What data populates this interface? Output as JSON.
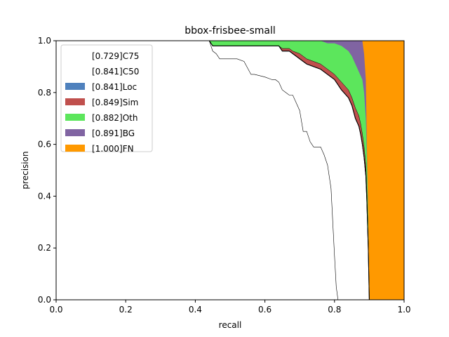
{
  "chart_data": {
    "type": "area",
    "title": "bbox-frisbee-small",
    "xlabel": "recall",
    "ylabel": "precision",
    "xlim": [
      0,
      1
    ],
    "ylim": [
      0,
      1
    ],
    "xticks": [
      "0.0",
      "0.2",
      "0.4",
      "0.6",
      "0.8",
      "1.0"
    ],
    "yticks": [
      "0.0",
      "0.2",
      "0.4",
      "0.6",
      "0.8",
      "1.0"
    ],
    "legend_position": "top-left",
    "legend": [
      {
        "label": "[0.729]C75",
        "color": "#ffffff"
      },
      {
        "label": "[0.841]C50",
        "color": "#ffffff"
      },
      {
        "label": "[0.841]Loc",
        "color": "#4f81bd"
      },
      {
        "label": "[0.849]Sim",
        "color": "#c0504d"
      },
      {
        "label": "[0.882]Oth",
        "color": "#5ce65c"
      },
      {
        "label": "[0.891]BG",
        "color": "#8064a2"
      },
      {
        "label": "[1.000]FN",
        "color": "#ff9900"
      }
    ],
    "series": [
      {
        "name": "[0.729]C75",
        "x": [
          0,
          0.44,
          0.45,
          0.46,
          0.47,
          0.48,
          0.5,
          0.52,
          0.54,
          0.56,
          0.57,
          0.6,
          0.62,
          0.63,
          0.64,
          0.65,
          0.66,
          0.67,
          0.68,
          0.69,
          0.7,
          0.71,
          0.72,
          0.73,
          0.74,
          0.75,
          0.76,
          0.77,
          0.78,
          0.79,
          0.8,
          0.805,
          0.81
        ],
        "y": [
          1.0,
          1.0,
          0.96,
          0.95,
          0.93,
          0.93,
          0.93,
          0.93,
          0.92,
          0.87,
          0.87,
          0.86,
          0.85,
          0.85,
          0.84,
          0.81,
          0.8,
          0.79,
          0.79,
          0.76,
          0.73,
          0.65,
          0.65,
          0.61,
          0.59,
          0.59,
          0.59,
          0.56,
          0.52,
          0.43,
          0.17,
          0.05,
          0.0
        ]
      },
      {
        "name": "[0.841]C50",
        "x": [
          0,
          0.44,
          0.45,
          0.6,
          0.64,
          0.65,
          0.67,
          0.68,
          0.7,
          0.72,
          0.74,
          0.76,
          0.78,
          0.8,
          0.82,
          0.84,
          0.85,
          0.86,
          0.87,
          0.875,
          0.88,
          0.885,
          0.89,
          0.893,
          0.897,
          0.9
        ],
        "y": [
          1.0,
          1.0,
          0.98,
          0.98,
          0.98,
          0.96,
          0.96,
          0.95,
          0.93,
          0.91,
          0.9,
          0.89,
          0.87,
          0.85,
          0.81,
          0.78,
          0.75,
          0.7,
          0.67,
          0.64,
          0.6,
          0.55,
          0.48,
          0.38,
          0.2,
          0.0
        ]
      },
      {
        "name": "[0.841]Loc",
        "x": [
          0,
          0.44,
          0.45,
          0.6,
          0.64,
          0.65,
          0.67,
          0.68,
          0.7,
          0.72,
          0.74,
          0.76,
          0.78,
          0.8,
          0.82,
          0.84,
          0.85,
          0.86,
          0.87,
          0.875,
          0.88,
          0.885,
          0.89,
          0.893,
          0.897,
          0.9
        ],
        "y": [
          1.0,
          1.0,
          0.98,
          0.98,
          0.98,
          0.96,
          0.96,
          0.95,
          0.93,
          0.91,
          0.9,
          0.89,
          0.87,
          0.85,
          0.81,
          0.78,
          0.75,
          0.7,
          0.67,
          0.64,
          0.6,
          0.55,
          0.48,
          0.38,
          0.2,
          0.0
        ]
      },
      {
        "name": "[0.849]Sim",
        "x": [
          0,
          0.44,
          0.45,
          0.6,
          0.64,
          0.65,
          0.67,
          0.68,
          0.7,
          0.72,
          0.74,
          0.76,
          0.78,
          0.8,
          0.82,
          0.84,
          0.85,
          0.86,
          0.87,
          0.875,
          0.88,
          0.885,
          0.89,
          0.893,
          0.897,
          0.9
        ],
        "y": [
          1.0,
          1.0,
          0.98,
          0.98,
          0.98,
          0.97,
          0.97,
          0.96,
          0.95,
          0.93,
          0.92,
          0.91,
          0.89,
          0.87,
          0.84,
          0.81,
          0.78,
          0.74,
          0.71,
          0.68,
          0.64,
          0.59,
          0.52,
          0.42,
          0.22,
          0.0
        ]
      },
      {
        "name": "[0.882]Oth",
        "x": [
          0,
          0.44,
          0.45,
          0.6,
          0.64,
          0.68,
          0.7,
          0.74,
          0.76,
          0.78,
          0.8,
          0.82,
          0.84,
          0.85,
          0.86,
          0.87,
          0.88,
          0.885,
          0.89,
          0.893,
          0.897,
          0.9
        ],
        "y": [
          1.0,
          1.0,
          1.0,
          1.0,
          1.0,
          1.0,
          1.0,
          1.0,
          1.0,
          0.99,
          0.99,
          0.98,
          0.96,
          0.94,
          0.91,
          0.88,
          0.85,
          0.8,
          0.7,
          0.55,
          0.3,
          0.0
        ]
      },
      {
        "name": "[0.891]BG",
        "x": [
          0,
          0.44,
          0.6,
          0.8,
          0.85,
          0.88,
          0.885,
          0.89,
          0.893,
          0.897,
          0.9
        ],
        "y": [
          1.0,
          1.0,
          1.0,
          1.0,
          1.0,
          1.0,
          0.95,
          0.85,
          0.6,
          0.3,
          0.0
        ]
      },
      {
        "name": "[1.000]FN",
        "x": [
          0,
          0.89,
          0.895,
          1.0
        ],
        "y": [
          1.0,
          1.0,
          1.0,
          1.0
        ]
      }
    ]
  }
}
